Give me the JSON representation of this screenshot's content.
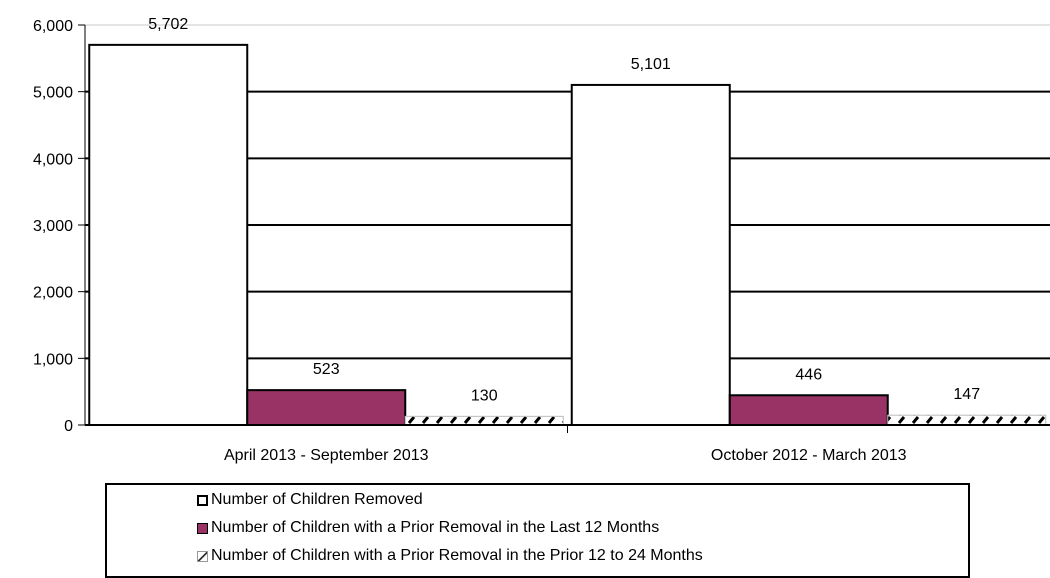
{
  "chart_data": {
    "type": "bar",
    "categories": [
      "April 2013 - September 2013",
      "October 2012 - March 2013"
    ],
    "series": [
      {
        "name": "Number of Children Removed",
        "values": [
          5702,
          5101
        ],
        "labels": [
          "5,702",
          "5,101"
        ],
        "color": "#ffffff",
        "pattern": "none"
      },
      {
        "name": "Number of Children with a Prior Removal in the Last 12 Months",
        "values": [
          523,
          446
        ],
        "labels": [
          "523",
          "446"
        ],
        "color": "#993366",
        "pattern": "none"
      },
      {
        "name": "Number of Children with a Prior Removal in the Prior 12 to 24 Months",
        "values": [
          130,
          147
        ],
        "labels": [
          "130",
          "147"
        ],
        "color": "#ffffff",
        "pattern": "diagonal-dash"
      }
    ],
    "ylim": [
      0,
      6000
    ],
    "yticks": [
      0,
      1000,
      2000,
      3000,
      4000,
      5000,
      6000
    ],
    "ytick_labels": [
      "0",
      "1,000",
      "2,000",
      "3,000",
      "4,000",
      "5,000",
      "6,000"
    ],
    "grid": true,
    "legend_position": "bottom",
    "title": "",
    "xlabel": "",
    "ylabel": ""
  }
}
